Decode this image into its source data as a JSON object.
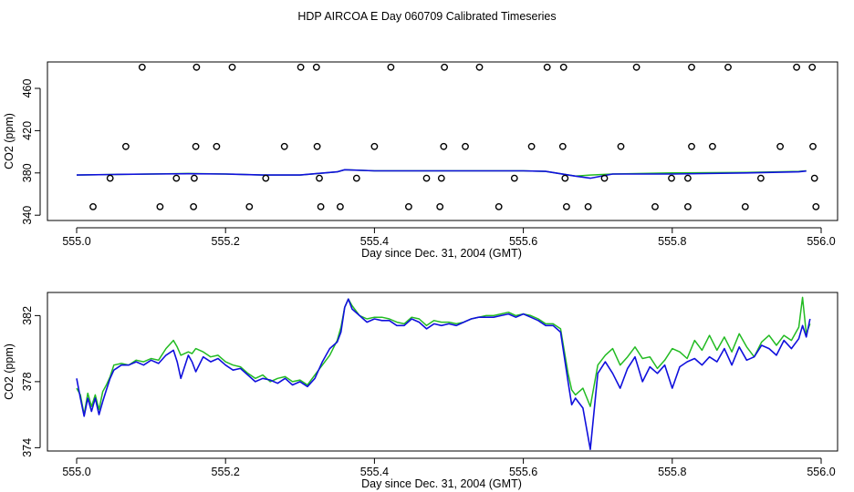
{
  "title": "HDP AIRCOA E  Day 060709  Calibrated Timeseries",
  "colors": {
    "green_series": "#22bb22",
    "blue_series": "#1010dd",
    "markers": "#000000"
  },
  "chart_data": [
    {
      "type": "line",
      "xlabel": "Day since Dec. 31, 2004 (GMT)",
      "ylabel": "CO2 (ppm)",
      "xlim": [
        555.0,
        556.0
      ],
      "ylim": [
        335,
        485
      ],
      "x_ticks": [
        "555.0",
        "555.2",
        "555.4",
        "555.6",
        "555.8",
        "556.0"
      ],
      "y_ticks": [
        "340",
        "380",
        "420",
        "460"
      ],
      "y_tick_values": [
        340,
        380,
        420,
        460
      ],
      "grid": false,
      "legend": "none",
      "marker_series": {
        "marker": "open-circle",
        "levels": [
          480,
          405,
          375,
          348
        ],
        "x": [
          [
            555.088,
            555.161,
            555.209,
            555.301,
            555.322,
            555.422,
            555.494,
            555.541,
            555.632,
            555.654,
            555.752,
            555.826,
            555.875,
            555.967,
            555.988
          ],
          [
            555.066,
            555.16,
            555.188,
            555.279,
            555.323,
            555.4,
            555.493,
            555.522,
            555.611,
            555.653,
            555.731,
            555.826,
            555.854,
            555.945,
            555.989
          ],
          [
            555.045,
            555.134,
            555.158,
            555.254,
            555.326,
            555.376,
            555.47,
            555.49,
            555.588,
            555.656,
            555.709,
            555.799,
            555.821,
            555.919,
            555.991
          ],
          [
            555.022,
            555.112,
            555.157,
            555.232,
            555.328,
            555.354,
            555.446,
            555.488,
            555.567,
            555.658,
            555.687,
            555.777,
            555.821,
            555.898,
            555.993
          ]
        ]
      },
      "series": [
        {
          "x": [
            555.0,
            555.05,
            555.1,
            555.15,
            555.2,
            555.25,
            555.3,
            555.35,
            555.36,
            555.4,
            555.5,
            555.6,
            555.63,
            555.67,
            555.69,
            555.72,
            555.8,
            555.9,
            555.97,
            555.98
          ],
          "values": [
            378,
            378.5,
            379,
            379.5,
            379,
            378,
            378,
            381,
            383,
            382,
            382,
            382,
            381.5,
            377,
            378,
            379,
            380,
            380.5,
            381.5,
            382
          ]
        },
        {
          "x": [
            555.0,
            555.05,
            555.1,
            555.15,
            555.2,
            555.25,
            555.3,
            555.35,
            555.36,
            555.4,
            555.5,
            555.6,
            555.63,
            555.67,
            555.69,
            555.72,
            555.8,
            555.9,
            555.97,
            555.98
          ],
          "values": [
            378,
            378.5,
            379,
            379.2,
            379,
            378,
            378,
            381,
            383,
            382,
            382,
            382,
            381.5,
            377,
            375,
            379,
            379,
            380,
            381,
            381.8
          ]
        }
      ]
    },
    {
      "type": "line",
      "xlabel": "Day since Dec. 31, 2004 (GMT)",
      "ylabel": "CO2 (ppm)",
      "xlim": [
        555.0,
        556.0
      ],
      "ylim": [
        373.8,
        383.4
      ],
      "x_ticks": [
        "555.0",
        "555.2",
        "555.4",
        "555.6",
        "555.8",
        "556.0"
      ],
      "y_ticks": [
        "374",
        "378",
        "382"
      ],
      "y_tick_values": [
        374,
        378,
        382
      ],
      "grid": false,
      "legend": "none",
      "series": [
        {
          "x": [
            555.0,
            555.005,
            555.01,
            555.015,
            555.02,
            555.025,
            555.03,
            555.035,
            555.04,
            555.045,
            555.05,
            555.06,
            555.07,
            555.08,
            555.09,
            555.1,
            555.11,
            555.12,
            555.13,
            555.135,
            555.14,
            555.15,
            555.155,
            555.16,
            555.17,
            555.18,
            555.19,
            555.2,
            555.21,
            555.22,
            555.23,
            555.24,
            555.25,
            555.26,
            555.27,
            555.28,
            555.29,
            555.3,
            555.31,
            555.32,
            555.33,
            555.34,
            555.35,
            555.355,
            555.36,
            555.365,
            555.37,
            555.38,
            555.39,
            555.4,
            555.41,
            555.42,
            555.43,
            555.44,
            555.45,
            555.46,
            555.47,
            555.48,
            555.49,
            555.5,
            555.51,
            555.52,
            555.53,
            555.54,
            555.55,
            555.56,
            555.57,
            555.58,
            555.59,
            555.6,
            555.61,
            555.62,
            555.63,
            555.64,
            555.65,
            555.66,
            555.665,
            555.67,
            555.68,
            555.69,
            555.7,
            555.71,
            555.72,
            555.73,
            555.74,
            555.75,
            555.76,
            555.77,
            555.78,
            555.79,
            555.8,
            555.81,
            555.82,
            555.83,
            555.84,
            555.85,
            555.86,
            555.87,
            555.88,
            555.89,
            555.9,
            555.91,
            555.92,
            555.93,
            555.94,
            555.95,
            555.96,
            555.97,
            555.975,
            555.98,
            555.985
          ],
          "values": [
            377.6,
            377.2,
            376.0,
            377.3,
            376.5,
            377.2,
            376.3,
            377.4,
            377.8,
            378.3,
            379.0,
            379.1,
            379.0,
            379.3,
            379.2,
            379.4,
            379.3,
            380.0,
            380.5,
            380.1,
            379.6,
            379.8,
            379.7,
            380.0,
            379.8,
            379.5,
            379.6,
            379.2,
            379.0,
            378.9,
            378.5,
            378.2,
            378.4,
            378.0,
            378.2,
            378.3,
            378.0,
            378.1,
            377.8,
            378.4,
            379.0,
            379.6,
            380.5,
            381.3,
            382.5,
            383.0,
            382.6,
            382.0,
            381.8,
            381.9,
            381.9,
            381.8,
            381.6,
            381.5,
            381.9,
            381.8,
            381.4,
            381.7,
            381.6,
            381.6,
            381.5,
            381.6,
            381.8,
            381.9,
            382.0,
            382.0,
            382.1,
            382.2,
            382.0,
            382.1,
            382.0,
            381.8,
            381.5,
            381.5,
            381.2,
            378.5,
            377.5,
            377.2,
            377.6,
            376.5,
            379.0,
            379.6,
            380.0,
            379.0,
            379.5,
            380.1,
            379.4,
            379.5,
            378.8,
            379.3,
            380.0,
            379.8,
            379.4,
            380.5,
            379.9,
            380.8,
            379.9,
            380.7,
            379.8,
            380.9,
            380.1,
            379.5,
            380.4,
            380.8,
            380.2,
            380.8,
            380.5,
            381.3,
            383.1,
            380.9,
            381.5
          ]
        },
        {
          "x": [
            555.0,
            555.005,
            555.01,
            555.015,
            555.02,
            555.025,
            555.03,
            555.035,
            555.04,
            555.045,
            555.05,
            555.06,
            555.07,
            555.08,
            555.09,
            555.1,
            555.11,
            555.12,
            555.13,
            555.135,
            555.14,
            555.15,
            555.155,
            555.16,
            555.17,
            555.18,
            555.19,
            555.2,
            555.21,
            555.22,
            555.23,
            555.24,
            555.25,
            555.26,
            555.27,
            555.28,
            555.29,
            555.3,
            555.31,
            555.32,
            555.33,
            555.34,
            555.35,
            555.355,
            555.36,
            555.365,
            555.37,
            555.38,
            555.39,
            555.4,
            555.41,
            555.42,
            555.43,
            555.44,
            555.45,
            555.46,
            555.47,
            555.48,
            555.49,
            555.5,
            555.51,
            555.52,
            555.53,
            555.54,
            555.55,
            555.56,
            555.57,
            555.58,
            555.59,
            555.6,
            555.61,
            555.62,
            555.63,
            555.64,
            555.65,
            555.66,
            555.665,
            555.67,
            555.68,
            555.69,
            555.7,
            555.71,
            555.72,
            555.73,
            555.74,
            555.75,
            555.76,
            555.77,
            555.78,
            555.79,
            555.8,
            555.81,
            555.82,
            555.83,
            555.84,
            555.85,
            555.86,
            555.87,
            555.88,
            555.89,
            555.9,
            555.91,
            555.92,
            555.93,
            555.94,
            555.95,
            555.96,
            555.97,
            555.975,
            555.98,
            555.985
          ],
          "values": [
            378.2,
            377.0,
            375.9,
            377.0,
            376.2,
            377.0,
            376.0,
            376.8,
            377.5,
            378.2,
            378.7,
            379.0,
            379.0,
            379.2,
            379.0,
            379.3,
            379.1,
            379.6,
            379.9,
            379.2,
            378.2,
            379.6,
            379.2,
            378.6,
            379.5,
            379.2,
            379.4,
            379.0,
            378.7,
            378.8,
            378.4,
            378.0,
            378.2,
            378.1,
            377.9,
            378.2,
            377.8,
            378.0,
            377.7,
            378.2,
            379.2,
            380.0,
            380.4,
            381.0,
            382.5,
            383.0,
            382.4,
            382.0,
            381.6,
            381.8,
            381.7,
            381.7,
            381.4,
            381.4,
            381.8,
            381.6,
            381.2,
            381.5,
            381.4,
            381.5,
            381.4,
            381.6,
            381.8,
            381.9,
            381.9,
            381.9,
            382.0,
            382.1,
            381.9,
            382.1,
            381.9,
            381.7,
            381.4,
            381.4,
            381.0,
            378.0,
            376.6,
            377.0,
            376.4,
            373.9,
            378.5,
            379.2,
            378.5,
            377.6,
            378.8,
            379.5,
            378.0,
            378.9,
            378.5,
            379.0,
            377.6,
            378.9,
            379.2,
            379.4,
            379.0,
            379.5,
            379.2,
            380.0,
            379.0,
            380.1,
            379.3,
            379.5,
            380.2,
            380.0,
            379.6,
            380.5,
            380.0,
            380.6,
            381.4,
            380.7,
            381.8
          ]
        }
      ]
    }
  ]
}
